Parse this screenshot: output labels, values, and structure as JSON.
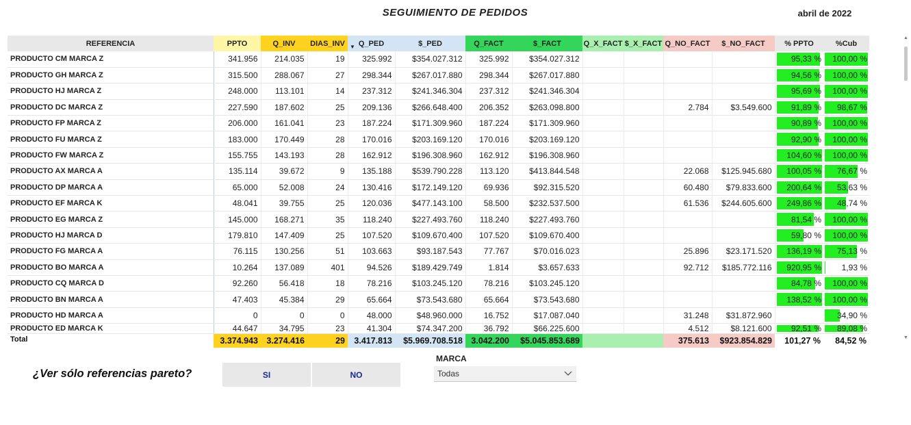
{
  "header": {
    "title": "SEGUIMIENTO DE PEDIDOS",
    "date": "abril de 2022"
  },
  "table": {
    "columns": [
      "REFERENCIA",
      "PPTO",
      "Q_INV",
      "DIAS_INV",
      "Q_PED",
      "$_PED",
      "Q_FACT",
      "$_FACT",
      "Q_X_FACT",
      "$_X_FACT",
      "Q_NO_FACT",
      "$_NO_FACT",
      "% PPTO",
      "%Cub"
    ],
    "sorted_column": "Q_PED",
    "rows": [
      {
        "ref": "PRODUCTO CM MARCA Z",
        "ppto": "341.956",
        "q_inv": "214.035",
        "dias": "19",
        "q_ped": "325.992",
        "s_ped": "$354.027.312",
        "q_fact": "325.992",
        "s_fact": "$354.027.312",
        "q_x": "",
        "s_x": "",
        "q_no": "",
        "s_no": "",
        "pct_ppto": "95,33 %",
        "pct_ppto_v": 95.33,
        "pct_cub": "100,00 %",
        "pct_cub_v": 100
      },
      {
        "ref": "PRODUCTO GH MARCA Z",
        "ppto": "315.500",
        "q_inv": "288.067",
        "dias": "27",
        "q_ped": "298.344",
        "s_ped": "$267.017.880",
        "q_fact": "298.344",
        "s_fact": "$267.017.880",
        "q_x": "",
        "s_x": "",
        "q_no": "",
        "s_no": "",
        "pct_ppto": "94,56 %",
        "pct_ppto_v": 94.56,
        "pct_cub": "100,00 %",
        "pct_cub_v": 100
      },
      {
        "ref": "PRODUCTO HJ MARCA Z",
        "ppto": "248.000",
        "q_inv": "113.101",
        "dias": "14",
        "q_ped": "237.312",
        "s_ped": "$241.346.304",
        "q_fact": "237.312",
        "s_fact": "$241.346.304",
        "q_x": "",
        "s_x": "",
        "q_no": "",
        "s_no": "",
        "pct_ppto": "95,69 %",
        "pct_ppto_v": 95.69,
        "pct_cub": "100,00 %",
        "pct_cub_v": 100
      },
      {
        "ref": "PRODUCTO DC MARCA Z",
        "ppto": "227.590",
        "q_inv": "187.602",
        "dias": "25",
        "q_ped": "209.136",
        "s_ped": "$266.648.400",
        "q_fact": "206.352",
        "s_fact": "$263.098.800",
        "q_x": "",
        "s_x": "",
        "q_no": "2.784",
        "s_no": "$3.549.600",
        "pct_ppto": "91,89 %",
        "pct_ppto_v": 91.89,
        "pct_cub": "98,67 %",
        "pct_cub_v": 98.67
      },
      {
        "ref": "PRODUCTO FP MARCA Z",
        "ppto": "206.000",
        "q_inv": "161.041",
        "dias": "23",
        "q_ped": "187.224",
        "s_ped": "$171.309.960",
        "q_fact": "187.224",
        "s_fact": "$171.309.960",
        "q_x": "",
        "s_x": "",
        "q_no": "",
        "s_no": "",
        "pct_ppto": "90,89 %",
        "pct_ppto_v": 90.89,
        "pct_cub": "100,00 %",
        "pct_cub_v": 100
      },
      {
        "ref": "PRODUCTO FU MARCA Z",
        "ppto": "183.000",
        "q_inv": "170.449",
        "dias": "28",
        "q_ped": "170.016",
        "s_ped": "$203.169.120",
        "q_fact": "170.016",
        "s_fact": "$203.169.120",
        "q_x": "",
        "s_x": "",
        "q_no": "",
        "s_no": "",
        "pct_ppto": "92,90 %",
        "pct_ppto_v": 92.9,
        "pct_cub": "100,00 %",
        "pct_cub_v": 100
      },
      {
        "ref": "PRODUCTO FW MARCA Z",
        "ppto": "155.755",
        "q_inv": "143.193",
        "dias": "28",
        "q_ped": "162.912",
        "s_ped": "$196.308.960",
        "q_fact": "162.912",
        "s_fact": "$196.308.960",
        "q_x": "",
        "s_x": "",
        "q_no": "",
        "s_no": "",
        "pct_ppto": "104,60 %",
        "pct_ppto_v": 104.6,
        "pct_cub": "100,00 %",
        "pct_cub_v": 100
      },
      {
        "ref": "PRODUCTO AX MARCA A",
        "ppto": "135.114",
        "q_inv": "39.672",
        "dias": "9",
        "q_ped": "135.188",
        "s_ped": "$539.790.228",
        "q_fact": "113.120",
        "s_fact": "$413.844.548",
        "q_x": "",
        "s_x": "",
        "q_no": "22.068",
        "s_no": "$125.945.680",
        "pct_ppto": "100,05 %",
        "pct_ppto_v": 100.05,
        "pct_cub": "76,67 %",
        "pct_cub_v": 76.67
      },
      {
        "ref": "PRODUCTO DP MARCA A",
        "ppto": "65.000",
        "q_inv": "52.008",
        "dias": "24",
        "q_ped": "130.416",
        "s_ped": "$172.149.120",
        "q_fact": "69.936",
        "s_fact": "$92.315.520",
        "q_x": "",
        "s_x": "",
        "q_no": "60.480",
        "s_no": "$79.833.600",
        "pct_ppto": "200,64 %",
        "pct_ppto_v": 200.64,
        "pct_cub": "53,63 %",
        "pct_cub_v": 53.63
      },
      {
        "ref": "PRODUCTO EF MARCA K",
        "ppto": "48.041",
        "q_inv": "39.755",
        "dias": "25",
        "q_ped": "120.036",
        "s_ped": "$477.143.100",
        "q_fact": "58.500",
        "s_fact": "$232.537.500",
        "q_x": "",
        "s_x": "",
        "q_no": "61.536",
        "s_no": "$244.605.600",
        "pct_ppto": "249,86 %",
        "pct_ppto_v": 249.86,
        "pct_cub": "48,74 %",
        "pct_cub_v": 48.74
      },
      {
        "ref": "PRODUCTO EG MARCA Z",
        "ppto": "145.000",
        "q_inv": "168.271",
        "dias": "35",
        "q_ped": "118.240",
        "s_ped": "$227.493.760",
        "q_fact": "118.240",
        "s_fact": "$227.493.760",
        "q_x": "",
        "s_x": "",
        "q_no": "",
        "s_no": "",
        "pct_ppto": "81,54 %",
        "pct_ppto_v": 81.54,
        "pct_cub": "100,00 %",
        "pct_cub_v": 100
      },
      {
        "ref": "PRODUCTO HJ MARCA D",
        "ppto": "179.810",
        "q_inv": "147.409",
        "dias": "25",
        "q_ped": "107.520",
        "s_ped": "$109.670.400",
        "q_fact": "107.520",
        "s_fact": "$109.670.400",
        "q_x": "",
        "s_x": "",
        "q_no": "",
        "s_no": "",
        "pct_ppto": "59,80 %",
        "pct_ppto_v": 59.8,
        "pct_cub": "100,00 %",
        "pct_cub_v": 100
      },
      {
        "ref": "PRODUCTO FG MARCA A",
        "ppto": "76.115",
        "q_inv": "130.256",
        "dias": "51",
        "q_ped": "103.663",
        "s_ped": "$93.187.543",
        "q_fact": "77.767",
        "s_fact": "$70.016.023",
        "q_x": "",
        "s_x": "",
        "q_no": "25.896",
        "s_no": "$23.171.520",
        "pct_ppto": "136,19 %",
        "pct_ppto_v": 136.19,
        "pct_cub": "75,13 %",
        "pct_cub_v": 75.13
      },
      {
        "ref": "PRODUCTO BO MARCA A",
        "ppto": "10.264",
        "q_inv": "137.089",
        "dias": "401",
        "q_ped": "94.526",
        "s_ped": "$189.429.749",
        "q_fact": "1.814",
        "s_fact": "$3.657.633",
        "q_x": "",
        "s_x": "",
        "q_no": "92.712",
        "s_no": "$185.772.116",
        "pct_ppto": "920,95 %",
        "pct_ppto_v": 920.95,
        "pct_cub": "1,93 %",
        "pct_cub_v": 1.93
      },
      {
        "ref": "PRODUCTO CQ MARCA D",
        "ppto": "92.260",
        "q_inv": "56.418",
        "dias": "18",
        "q_ped": "78.216",
        "s_ped": "$103.245.120",
        "q_fact": "78.216",
        "s_fact": "$103.245.120",
        "q_x": "",
        "s_x": "",
        "q_no": "",
        "s_no": "",
        "pct_ppto": "84,78 %",
        "pct_ppto_v": 84.78,
        "pct_cub": "100,00 %",
        "pct_cub_v": 100
      },
      {
        "ref": "PRODUCTO BN MARCA A",
        "ppto": "47.403",
        "q_inv": "45.384",
        "dias": "29",
        "q_ped": "65.664",
        "s_ped": "$73.543.680",
        "q_fact": "65.664",
        "s_fact": "$73.543.680",
        "q_x": "",
        "s_x": "",
        "q_no": "",
        "s_no": "",
        "pct_ppto": "138,52 %",
        "pct_ppto_v": 138.52,
        "pct_cub": "100,00 %",
        "pct_cub_v": 100
      },
      {
        "ref": "PRODUCTO HD MARCA A",
        "ppto": "0",
        "q_inv": "0",
        "dias": "0",
        "q_ped": "48.000",
        "s_ped": "$48.960.000",
        "q_fact": "16.752",
        "s_fact": "$17.087.040",
        "q_x": "",
        "s_x": "",
        "q_no": "31.248",
        "s_no": "$31.872.960",
        "pct_ppto": "",
        "pct_ppto_v": 0,
        "pct_cub": "34,90 %",
        "pct_cub_v": 34.9
      },
      {
        "ref": "PRODUCTO ED MARCA K",
        "ppto": "44.647",
        "q_inv": "34.795",
        "dias": "23",
        "q_ped": "41.304",
        "s_ped": "$74.347.200",
        "q_fact": "36.792",
        "s_fact": "$66.225.600",
        "q_x": "",
        "s_x": "",
        "q_no": "4.512",
        "s_no": "$8.121.600",
        "pct_ppto": "92,51 %",
        "pct_ppto_v": 92.51,
        "pct_cub": "89,08 %",
        "pct_cub_v": 89.08
      }
    ],
    "total": {
      "ref": "Total",
      "ppto": "3.374.943",
      "q_inv": "3.274.416",
      "dias": "29",
      "q_ped": "3.417.813",
      "s_ped": "$5.969.708.518",
      "q_fact": "3.042.200",
      "s_fact": "$5.045.853.689",
      "q_x": "",
      "s_x": "",
      "q_no": "375.613",
      "s_no": "$923.854.829",
      "pct_ppto": "101,27 %",
      "pct_cub": "84,52 %"
    }
  },
  "filters": {
    "pareto_label": "¿Ver sólo referencias pareto?",
    "si_label": "SI",
    "no_label": "NO",
    "marca_label": "MARCA",
    "marca_value": "Todas"
  },
  "colors": {
    "bar": "#22ee22",
    "q_inv_header": "#ffd21f",
    "fact_header": "#33d65a",
    "no_fact_header": "#f6cbc6"
  }
}
